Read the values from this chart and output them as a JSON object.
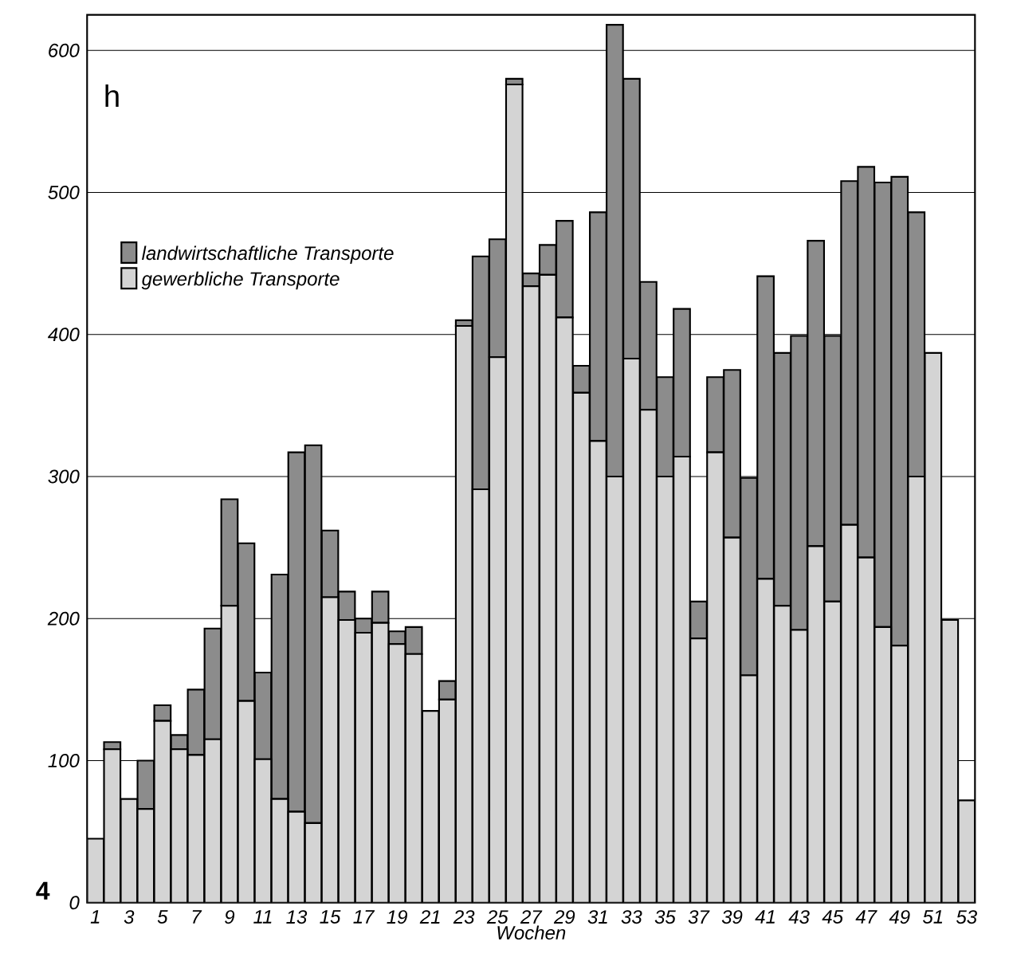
{
  "chart_data": {
    "type": "bar",
    "stacked": true,
    "xlabel": "Wochen",
    "ylabel": "h",
    "categories": [
      "1",
      null,
      "3",
      null,
      "5",
      null,
      "7",
      null,
      "9",
      null,
      "11",
      null,
      "13",
      null,
      "15",
      null,
      "17",
      null,
      "19",
      null,
      "21",
      null,
      "23",
      null,
      "25",
      null,
      "27",
      null,
      "29",
      null,
      "31",
      null,
      "33",
      null,
      "35",
      null,
      "37",
      null,
      "39",
      null,
      "41",
      null,
      "43",
      null,
      "45",
      null,
      "47",
      null,
      "49",
      null,
      "51",
      null,
      "53"
    ],
    "series": [
      {
        "name": "gewerbliche Transporte",
        "color": "#d4d4d4",
        "values": [
          45,
          108,
          73,
          66,
          128,
          108,
          104,
          115,
          209,
          142,
          101,
          73,
          64,
          56,
          215,
          199,
          190,
          197,
          182,
          175,
          135,
          143,
          406,
          291,
          384,
          576,
          434,
          442,
          412,
          359,
          325,
          300,
          383,
          347,
          300,
          314,
          186,
          317,
          257,
          160,
          228,
          209,
          192,
          251,
          212,
          266,
          243,
          194,
          181,
          300,
          387,
          199,
          72
        ]
      },
      {
        "name": "landwirtschaftliche Transporte",
        "color": "#8c8c8c",
        "values": [
          0,
          5,
          0,
          34,
          11,
          10,
          46,
          78,
          75,
          111,
          61,
          158,
          253,
          266,
          47,
          20,
          10,
          22,
          9,
          19,
          0,
          13,
          4,
          164,
          83,
          4,
          9,
          21,
          68,
          19,
          161,
          318,
          197,
          90,
          70,
          104,
          26,
          53,
          118,
          139,
          213,
          178,
          207,
          215,
          187,
          242,
          275,
          313,
          330,
          186,
          0,
          0,
          0
        ]
      }
    ],
    "ylim": [
      0,
      625
    ],
    "yticks": [
      0,
      100,
      200,
      300,
      400,
      500,
      600
    ],
    "grid": "y",
    "legend": "top left",
    "annotations": [
      "4"
    ]
  }
}
